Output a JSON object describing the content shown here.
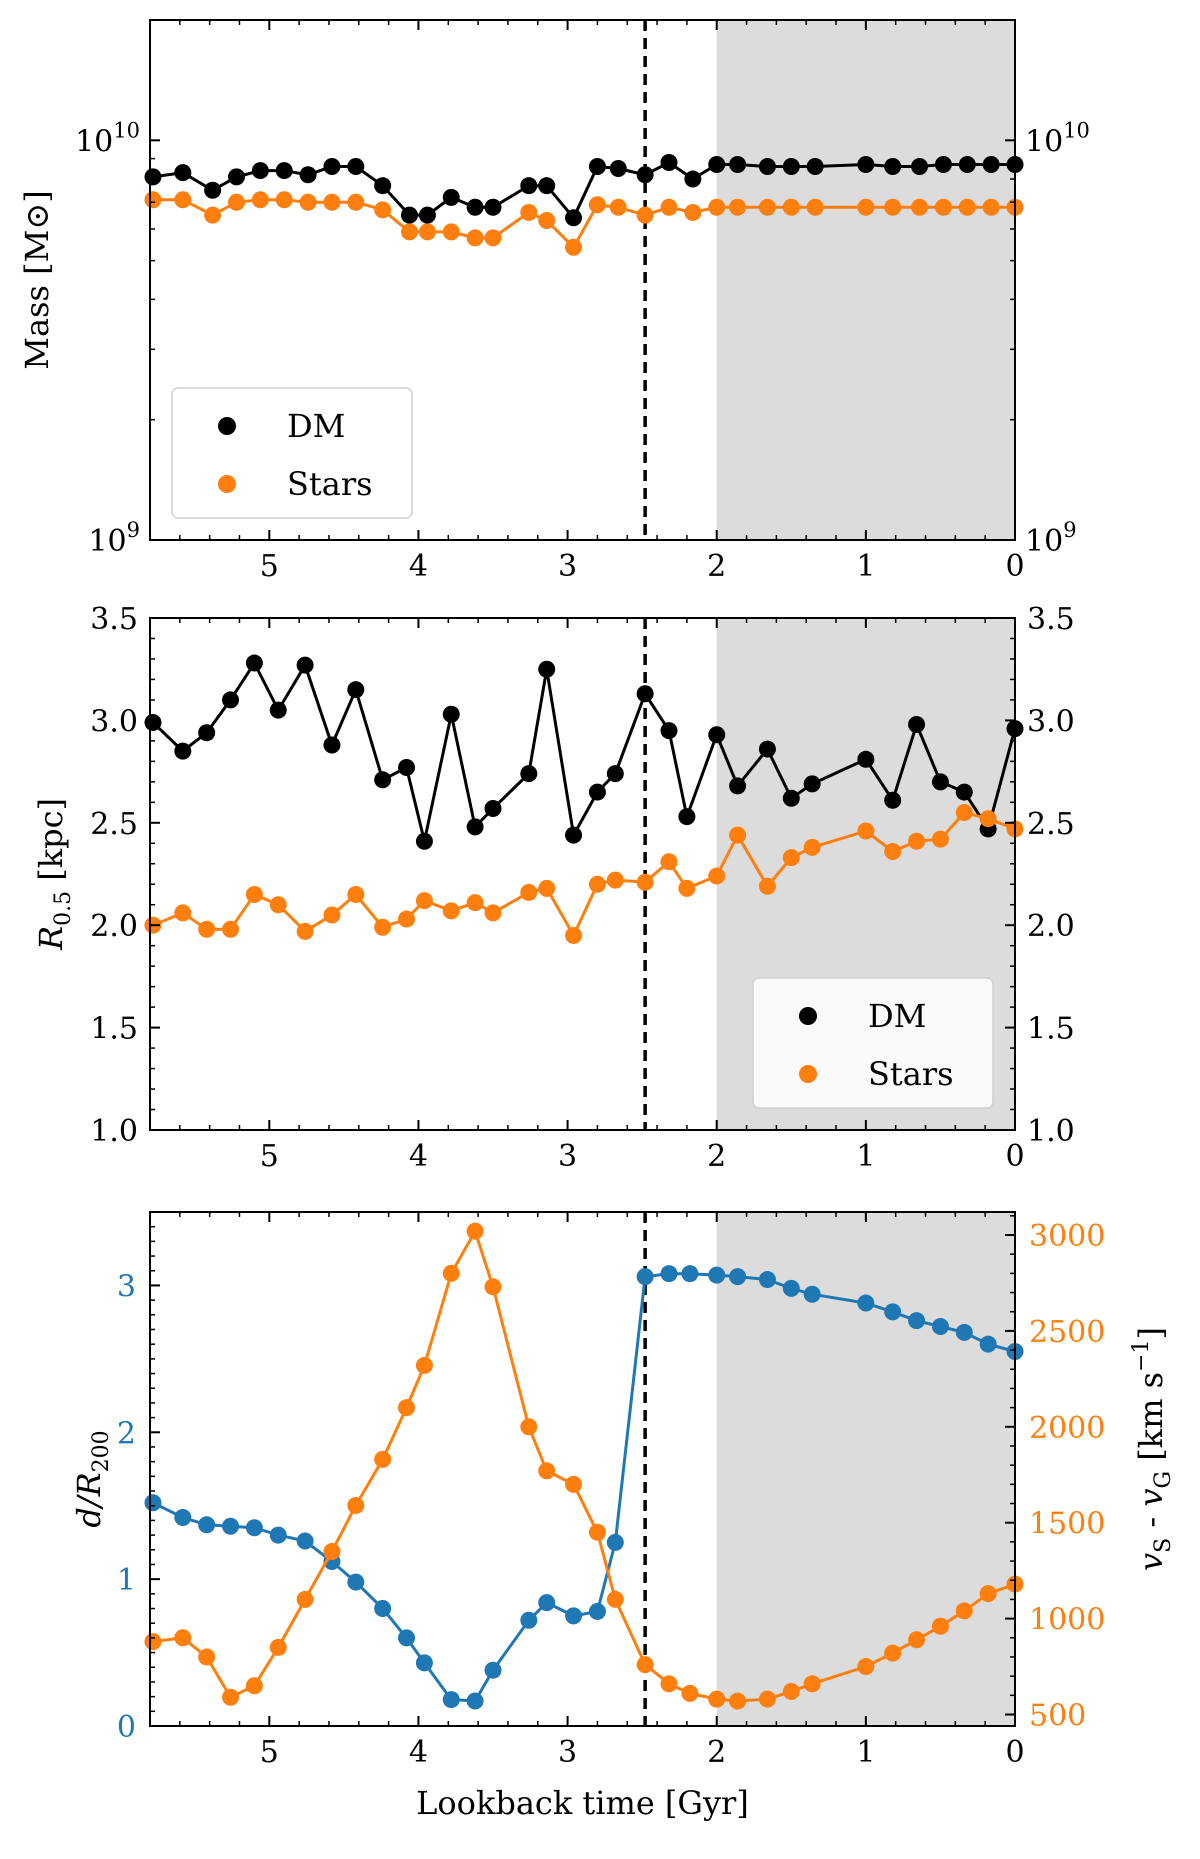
{
  "colors": {
    "dm": "#000000",
    "stars": "#ff7f0e",
    "distance": "#1f77b4",
    "velocity": "#ff7f0e",
    "shade": "#dcdcdc",
    "event_line": "#000000"
  },
  "chart_data": [
    {
      "type": "line",
      "panel": "mass",
      "xlabel": "",
      "ylabel": "Mass [M⊙]",
      "xlim": [
        5.8,
        0
      ],
      "ylim": [
        1000000000,
        20000000000
      ],
      "yscale": "log",
      "x_ticks": [
        "5",
        "4",
        "3",
        "2",
        "1",
        "0"
      ],
      "y_ticks": [
        {
          "base": "10",
          "exp": "9",
          "value": 1000000000
        },
        {
          "base": "10",
          "exp": "10",
          "value": 10000000000
        }
      ],
      "vline": 2.48,
      "shade_range": [
        2.0,
        0
      ],
      "legend": {
        "position": "lower-left",
        "entries": [
          "DM",
          "Stars"
        ]
      },
      "series": [
        {
          "name": "DM",
          "color_key": "dm",
          "x": [
            5.78,
            5.58,
            5.38,
            5.22,
            5.06,
            4.9,
            4.74,
            4.58,
            4.42,
            4.24,
            4.06,
            3.94,
            3.78,
            3.62,
            3.5,
            3.26,
            3.14,
            2.96,
            2.8,
            2.66,
            2.48,
            2.32,
            2.16,
            2.0,
            1.86,
            1.66,
            1.5,
            1.34,
            1.0,
            0.82,
            0.64,
            0.48,
            0.32,
            0.16,
            0.0
          ],
          "y": [
            8100000000.0,
            8300000000.0,
            7500000000.0,
            8100000000.0,
            8400000000.0,
            8400000000.0,
            8200000000.0,
            8600000000.0,
            8600000000.0,
            7700000000.0,
            6500000000.0,
            6500000000.0,
            7200000000.0,
            6800000000.0,
            6800000000.0,
            7700000000.0,
            7700000000.0,
            6400000000.0,
            8600000000.0,
            8500000000.0,
            8200000000.0,
            8800000000.0,
            8000000000.0,
            8700000000.0,
            8700000000.0,
            8600000000.0,
            8600000000.0,
            8600000000.0,
            8700000000.0,
            8600000000.0,
            8600000000.0,
            8700000000.0,
            8700000000.0,
            8700000000.0,
            8700000000.0
          ]
        },
        {
          "name": "Stars",
          "color_key": "stars",
          "x": [
            5.78,
            5.58,
            5.38,
            5.22,
            5.06,
            4.9,
            4.74,
            4.58,
            4.42,
            4.24,
            4.06,
            3.94,
            3.78,
            3.62,
            3.5,
            3.26,
            3.14,
            2.96,
            2.8,
            2.66,
            2.48,
            2.32,
            2.16,
            2.0,
            1.86,
            1.66,
            1.5,
            1.34,
            1.0,
            0.82,
            0.64,
            0.48,
            0.32,
            0.16,
            0.0
          ],
          "y": [
            7100000000.0,
            7100000000.0,
            6500000000.0,
            7000000000.0,
            7100000000.0,
            7100000000.0,
            7000000000.0,
            7000000000.0,
            7000000000.0,
            6700000000.0,
            5900000000.0,
            5900000000.0,
            5900000000.0,
            5700000000.0,
            5700000000.0,
            6600000000.0,
            6300000000.0,
            5400000000.0,
            6900000000.0,
            6800000000.0,
            6500000000.0,
            6800000000.0,
            6600000000.0,
            6800000000.0,
            6800000000.0,
            6800000000.0,
            6800000000.0,
            6800000000.0,
            6800000000.0,
            6800000000.0,
            6800000000.0,
            6800000000.0,
            6800000000.0,
            6800000000.0,
            6800000000.0
          ]
        }
      ]
    },
    {
      "type": "line",
      "panel": "radius",
      "xlabel": "",
      "ylabel": "R0.5 [kpc]",
      "ylabel_parts": {
        "symbol": "R",
        "sub": "0.5",
        "unit": " [kpc]"
      },
      "xlim": [
        5.8,
        0
      ],
      "ylim": [
        1.0,
        3.5
      ],
      "x_ticks": [
        "5",
        "4",
        "3",
        "2",
        "1",
        "0"
      ],
      "y_ticks": [
        "1.0",
        "1.5",
        "2.0",
        "2.5",
        "3.0",
        "3.5"
      ],
      "vline": 2.48,
      "shade_range": [
        2.0,
        0
      ],
      "legend": {
        "position": "lower-right",
        "entries": [
          "DM",
          "Stars"
        ]
      },
      "series": [
        {
          "name": "DM",
          "color_key": "dm",
          "x": [
            5.78,
            5.58,
            5.42,
            5.26,
            5.1,
            4.94,
            4.76,
            4.58,
            4.42,
            4.24,
            4.08,
            3.96,
            3.78,
            3.62,
            3.5,
            3.26,
            3.14,
            2.96,
            2.8,
            2.68,
            2.48,
            2.32,
            2.2,
            2.0,
            1.86,
            1.66,
            1.5,
            1.36,
            1.0,
            0.82,
            0.66,
            0.5,
            0.34,
            0.18,
            0.0
          ],
          "y": [
            2.99,
            2.85,
            2.94,
            3.1,
            3.28,
            3.05,
            3.27,
            2.88,
            3.15,
            2.71,
            2.77,
            2.41,
            3.03,
            2.48,
            2.57,
            2.74,
            3.25,
            2.44,
            2.65,
            2.74,
            3.13,
            2.95,
            2.53,
            2.93,
            2.68,
            2.86,
            2.62,
            2.69,
            2.81,
            2.61,
            2.98,
            2.7,
            2.65,
            2.47,
            2.96
          ]
        },
        {
          "name": "Stars",
          "color_key": "stars",
          "x": [
            5.78,
            5.58,
            5.42,
            5.26,
            5.1,
            4.94,
            4.76,
            4.58,
            4.42,
            4.24,
            4.08,
            3.96,
            3.78,
            3.62,
            3.5,
            3.26,
            3.14,
            2.96,
            2.8,
            2.68,
            2.48,
            2.32,
            2.2,
            2.0,
            1.86,
            1.66,
            1.5,
            1.36,
            1.0,
            0.82,
            0.66,
            0.5,
            0.34,
            0.18,
            0.0
          ],
          "y": [
            2.0,
            2.06,
            1.98,
            1.98,
            2.15,
            2.1,
            1.97,
            2.05,
            2.15,
            1.99,
            2.03,
            2.12,
            2.07,
            2.11,
            2.06,
            2.16,
            2.18,
            1.95,
            2.2,
            2.22,
            2.21,
            2.31,
            2.18,
            2.24,
            2.44,
            2.19,
            2.33,
            2.38,
            2.46,
            2.36,
            2.41,
            2.42,
            2.55,
            2.52,
            2.47
          ]
        }
      ]
    },
    {
      "type": "line",
      "panel": "orbit",
      "xlabel": "Lookback time [Gyr]",
      "ylabel": "d/R200",
      "ylabel_parts": {
        "symbol": "d/R",
        "sub": "200"
      },
      "ylabel_right": "vS - vG [km s−1]",
      "ylabel_right_parts": {
        "v1": "v",
        "s1": "S",
        "mid": " - ",
        "v2": "v",
        "s2": "G",
        "unit": " [km s",
        "sup": "−1",
        "end": "]"
      },
      "xlim": [
        5.8,
        0
      ],
      "ylim": [
        0,
        3.5
      ],
      "ylim_right": [
        440,
        3120
      ],
      "x_ticks": [
        "5",
        "4",
        "3",
        "2",
        "1",
        "0"
      ],
      "y_ticks": [
        "0",
        "1",
        "2",
        "3"
      ],
      "y_ticks_right": [
        "500",
        "1000",
        "1500",
        "2000",
        "2500",
        "3000"
      ],
      "vline": 2.48,
      "shade_range": [
        2.0,
        0
      ],
      "series": [
        {
          "name": "d/R200",
          "axis": "left",
          "color_key": "distance",
          "x": [
            5.78,
            5.58,
            5.42,
            5.26,
            5.1,
            4.94,
            4.76,
            4.58,
            4.42,
            4.24,
            4.08,
            3.96,
            3.78,
            3.62,
            3.5,
            3.26,
            3.14,
            2.96,
            2.8,
            2.68,
            2.48,
            2.32,
            2.18,
            2.0,
            1.86,
            1.66,
            1.5,
            1.36,
            1.0,
            0.82,
            0.66,
            0.5,
            0.34,
            0.18,
            0.0
          ],
          "y": [
            1.52,
            1.42,
            1.37,
            1.36,
            1.35,
            1.3,
            1.26,
            1.12,
            0.98,
            0.8,
            0.6,
            0.43,
            0.18,
            0.17,
            0.38,
            0.72,
            0.84,
            0.75,
            0.78,
            1.25,
            3.06,
            3.08,
            3.08,
            3.07,
            3.06,
            3.04,
            2.98,
            2.94,
            2.88,
            2.82,
            2.76,
            2.72,
            2.68,
            2.6,
            2.55
          ]
        },
        {
          "name": "vS - vG",
          "axis": "right",
          "color_key": "velocity",
          "x": [
            5.78,
            5.58,
            5.42,
            5.26,
            5.1,
            4.94,
            4.76,
            4.58,
            4.42,
            4.24,
            4.08,
            3.96,
            3.78,
            3.62,
            3.5,
            3.26,
            3.14,
            2.96,
            2.8,
            2.68,
            2.48,
            2.32,
            2.18,
            2.0,
            1.86,
            1.66,
            1.5,
            1.36,
            1.0,
            0.82,
            0.66,
            0.5,
            0.34,
            0.18,
            0.0
          ],
          "y": [
            880,
            900,
            800,
            590,
            650,
            850,
            1100,
            1350,
            1590,
            1830,
            2100,
            2320,
            2800,
            3020,
            2730,
            2000,
            1770,
            1700,
            1450,
            1100,
            760,
            660,
            610,
            580,
            570,
            580,
            620,
            660,
            750,
            820,
            890,
            960,
            1040,
            1130,
            1180
          ]
        }
      ]
    }
  ]
}
